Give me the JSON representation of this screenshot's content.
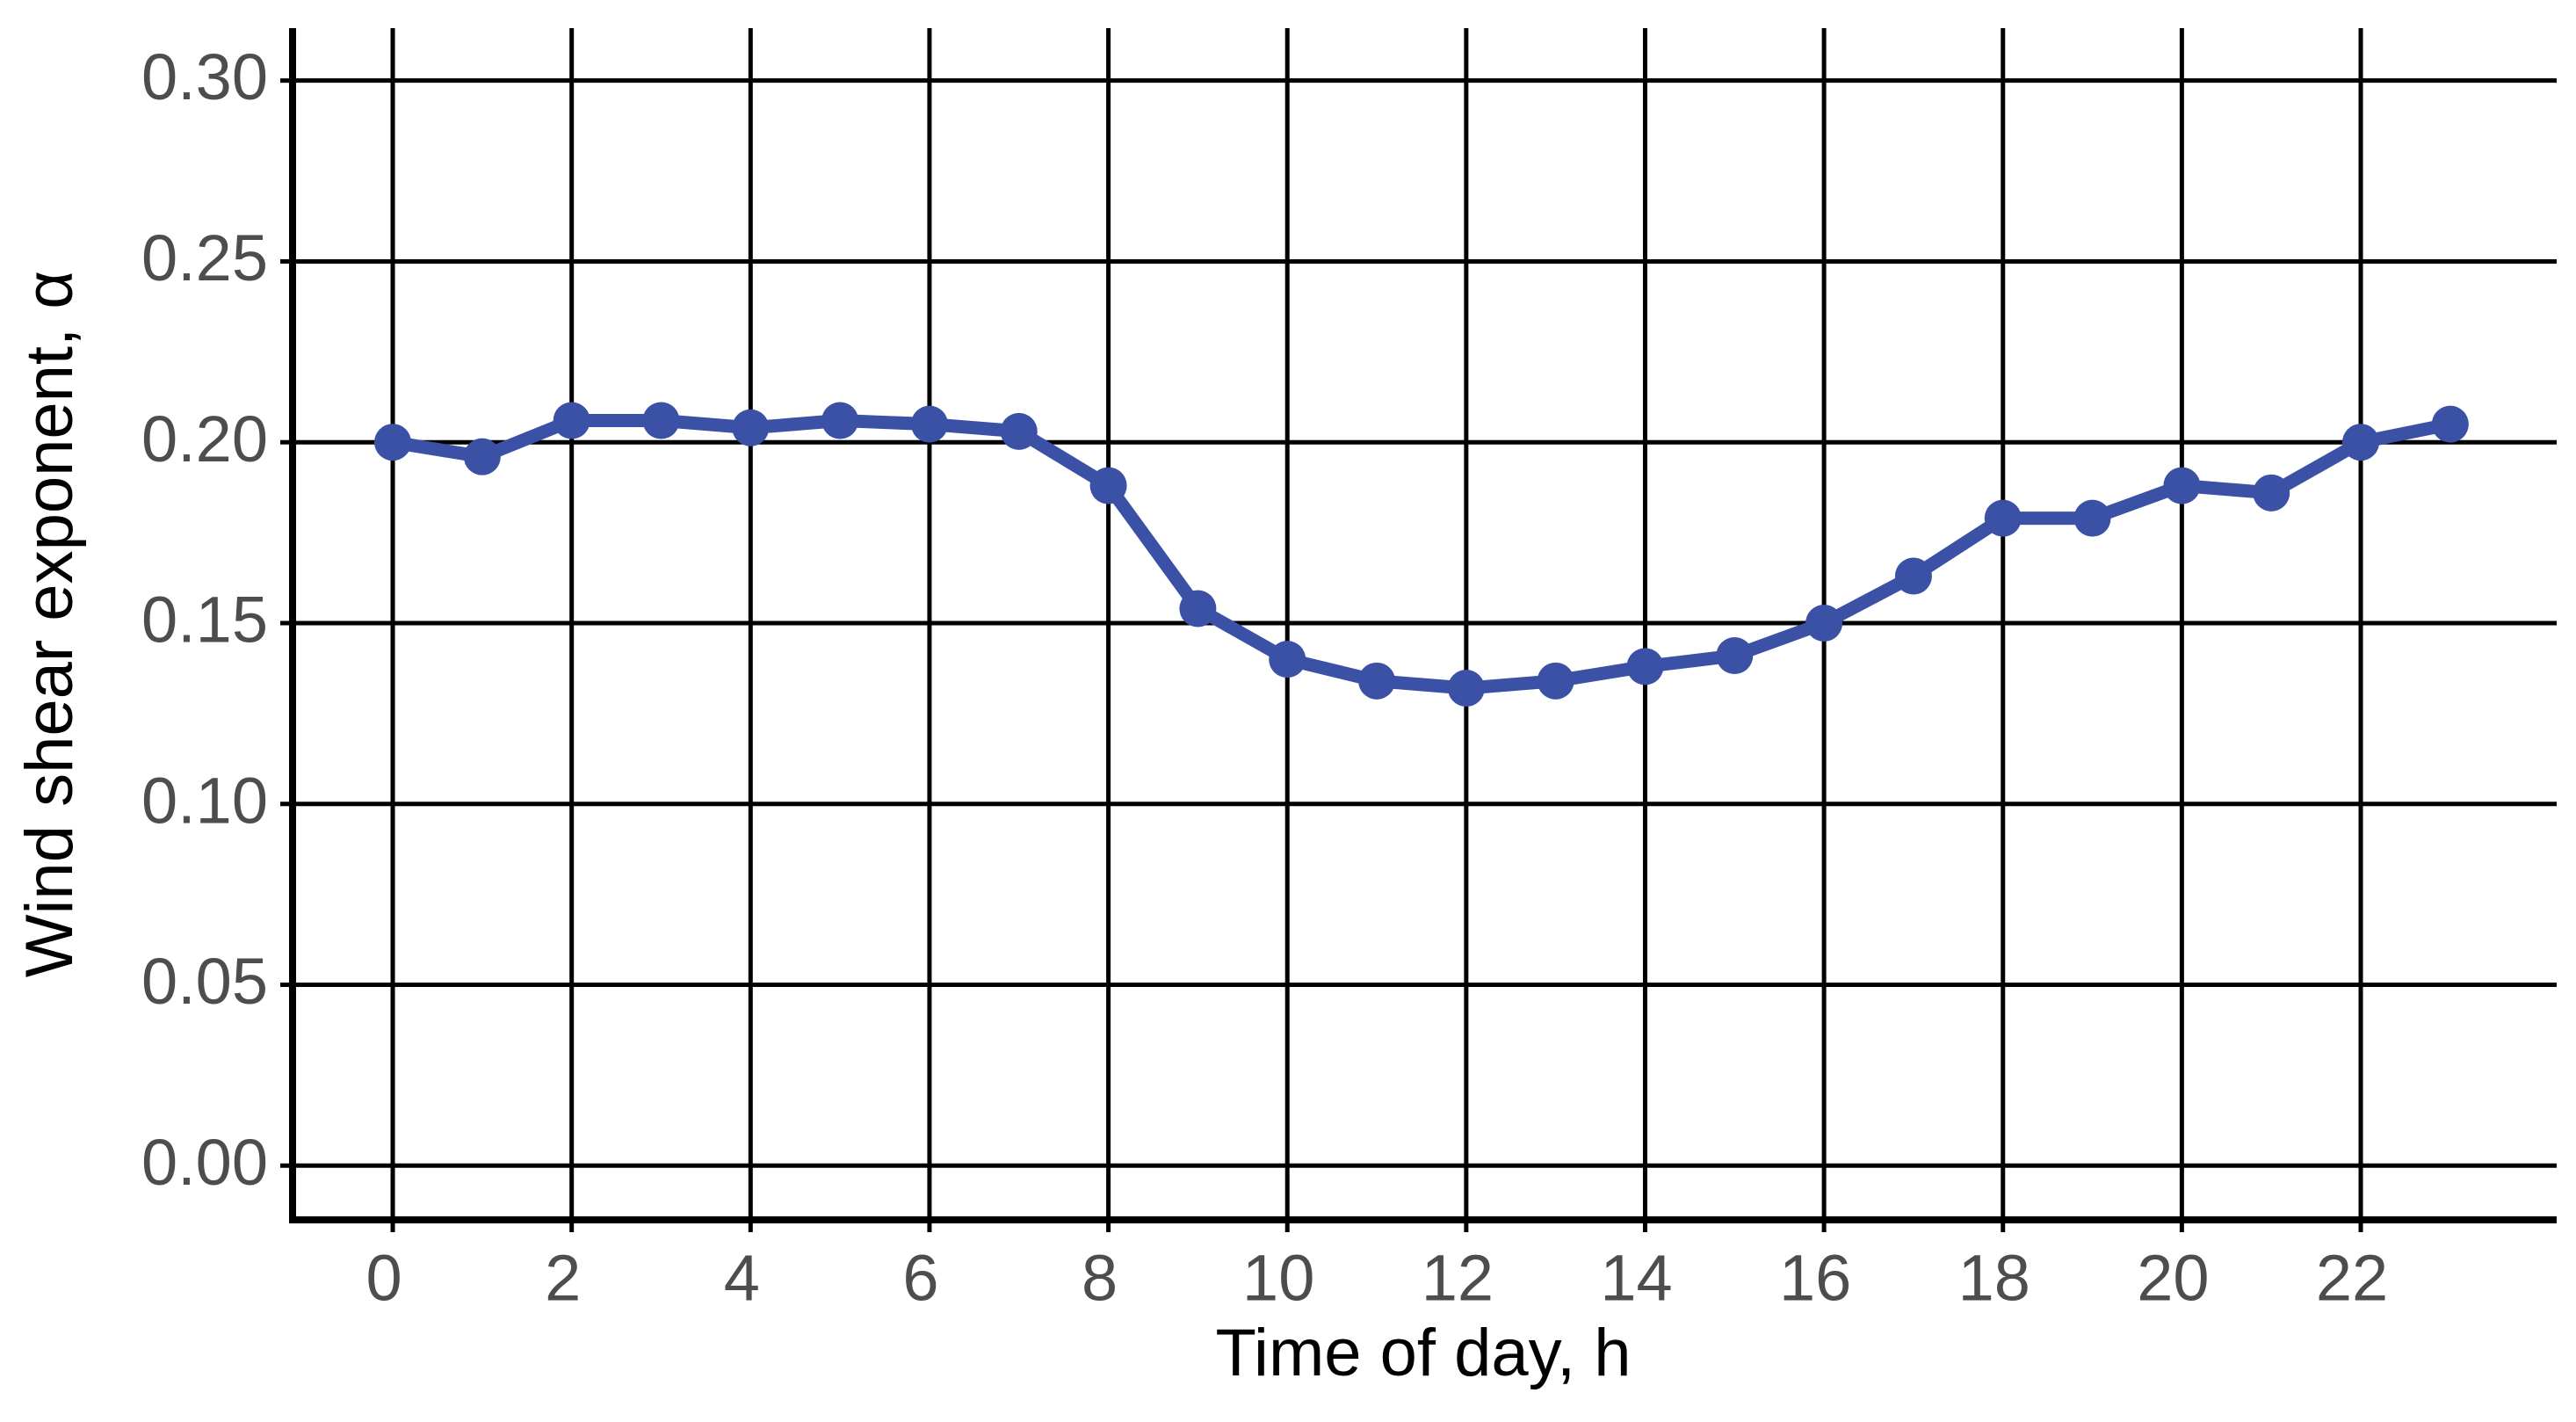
{
  "chart_data": {
    "type": "line",
    "x_label": "Time of day, h",
    "y_label": "Wind shear exponent, α",
    "x": [
      0,
      1,
      2,
      3,
      4,
      5,
      6,
      7,
      8,
      9,
      10,
      11,
      12,
      13,
      14,
      15,
      16,
      17,
      18,
      19,
      20,
      21,
      22,
      23
    ],
    "series": [
      {
        "name": "Wind shear exponent",
        "color": "#3a51a6",
        "values": [
          0.2,
          0.196,
          0.206,
          0.206,
          0.204,
          0.206,
          0.205,
          0.203,
          0.188,
          0.154,
          0.14,
          0.134,
          0.132,
          0.134,
          0.138,
          0.141,
          0.15,
          0.163,
          0.179,
          0.179,
          0.188,
          0.186,
          0.2,
          0.205
        ]
      }
    ],
    "xlim": [
      -1.12,
      24.19
    ],
    "ylim": [
      -0.015,
      0.3145
    ],
    "xticks": [
      0,
      2,
      4,
      6,
      8,
      10,
      12,
      14,
      16,
      18,
      20,
      22
    ],
    "yticks": [
      {
        "value": 0,
        "label": "0.00"
      },
      {
        "value": 0.05,
        "label": "0.05"
      },
      {
        "value": 0.1,
        "label": "0.10"
      },
      {
        "value": 0.15,
        "label": "0.15"
      },
      {
        "value": 0.2,
        "label": "0.20"
      },
      {
        "value": 0.25,
        "label": "0.25"
      },
      {
        "value": 0.3,
        "label": "0.30"
      }
    ],
    "grid": true
  }
}
